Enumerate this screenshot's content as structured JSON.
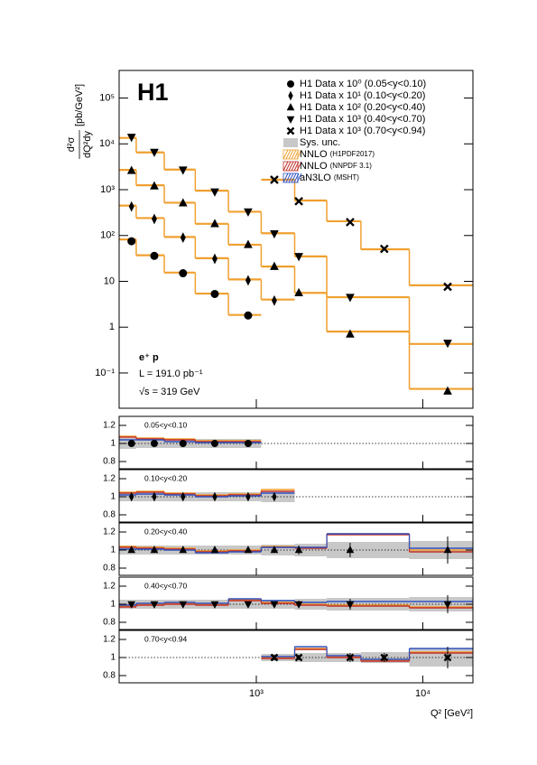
{
  "chart_data": {
    "type": "step",
    "title": "H1",
    "annotations": [
      "e⁺ p",
      "L = 191.0 pb⁻¹",
      "√s = 319 GeV"
    ],
    "xlabel": "Q² [GeV²]",
    "ylabel": {
      "numerator": "d²σ",
      "denominator": "dQ²dy",
      "unit": "[pb/GeV²]"
    },
    "xscale": "log",
    "yscale": "log",
    "xlim": [
      150,
      20000
    ],
    "xticks": [
      {
        "value": 1000,
        "label": "10³"
      },
      {
        "value": 10000,
        "label": "10⁴"
      }
    ],
    "ylim": [
      0.017,
      400000
    ],
    "yticks": [
      {
        "value": 0.1,
        "label": "10⁻¹"
      },
      1,
      10,
      {
        "value": 100,
        "label": "10²"
      },
      {
        "value": 1000,
        "label": "10³"
      },
      {
        "value": 10000,
        "label": "10⁴"
      },
      {
        "value": 100000,
        "label": "10⁵"
      }
    ],
    "legend": "upper right",
    "series": [
      {
        "name": "H1 Data x 10⁰ (0.05<y<0.10)",
        "marker": "circle",
        "color": "#000000",
        "x": [
          178,
          244,
          363,
          563,
          893
        ],
        "values": [
          75,
          36,
          15,
          5.3,
          1.8
        ],
        "bins": [
          150,
          190,
          280,
          430,
          680,
          1070
        ],
        "theory": [
          82,
          37,
          15.5,
          5.4,
          1.85
        ]
      },
      {
        "name": "H1 Data x 10¹ (0.10<y<0.20)",
        "marker": "diamond",
        "color": "#000000",
        "x": [
          178,
          244,
          363,
          563,
          893,
          1283
        ],
        "values": [
          430,
          230,
          90,
          31,
          10.5,
          3.8
        ],
        "bins": [
          150,
          190,
          280,
          430,
          680,
          1070,
          1700
        ],
        "theory": [
          450,
          240,
          93,
          32,
          11,
          4.0
        ]
      },
      {
        "name": "H1 Data x 10² (0.20<y<0.40)",
        "marker": "triangle-up",
        "color": "#000000",
        "x": [
          178,
          244,
          363,
          563,
          893,
          1283,
          1800,
          3660,
          14100
        ],
        "values": [
          2600,
          1200,
          510,
          180,
          63,
          21,
          5.6,
          0.7,
          0.04
        ],
        "bins": [
          150,
          190,
          280,
          430,
          680,
          1070,
          1700,
          2650,
          8300,
          20000
        ],
        "theory": [
          2700,
          1250,
          520,
          180,
          63,
          21,
          5.6,
          0.8,
          0.045
        ]
      },
      {
        "name": "H1 Data x 10³ (0.40<y<0.70)",
        "marker": "triangle-down",
        "color": "#000000",
        "x": [
          178,
          244,
          363,
          563,
          893,
          1283,
          1800,
          3660,
          14100
        ],
        "values": [
          14000,
          6600,
          2700,
          900,
          330,
          110,
          35,
          4.5,
          0.45
        ],
        "bins": [
          150,
          190,
          280,
          430,
          680,
          1070,
          1700,
          2650,
          8300,
          20000
        ],
        "theory": [
          13500,
          6500,
          2750,
          950,
          330,
          112,
          35,
          4.5,
          0.43
        ]
      },
      {
        "name": "H1 Data x 10³ (0.70<y<0.94)",
        "marker": "cross",
        "color": "#000000",
        "x": [
          1283,
          1800,
          3660,
          5870,
          14100
        ],
        "values": [
          1650,
          560,
          196,
          51,
          7.6
        ],
        "bins": [
          1070,
          1700,
          2650,
          4250,
          8300,
          20000
        ],
        "theory": [
          1650,
          580,
          205,
          50,
          8.2
        ]
      }
    ],
    "theory_legend": [
      {
        "name": "Sys. unc.",
        "color": "#c8c8c8"
      },
      {
        "name": "NNLO",
        "note": "(H1PDF2017)",
        "color": "#f0a030"
      },
      {
        "name": "NNLO",
        "note": "(NNPDF 3.1)",
        "color": "#c0302a"
      },
      {
        "name": "aN3LO",
        "note": "(MSHT)",
        "color": "#3050c0"
      }
    ],
    "ratios": [
      {
        "label": "0.05<y<0.10",
        "ylim": [
          0.72,
          1.3
        ],
        "yticks": [
          {
            "value": 0.8,
            "label": "0.8"
          },
          1,
          {
            "value": 1.2,
            "label": "1.2"
          }
        ],
        "x": [
          178,
          244,
          363,
          563,
          893
        ],
        "values": [
          1,
          1,
          1,
          1,
          1
        ],
        "errors": [
          0.02,
          0.02,
          0.02,
          0.02,
          0.03
        ],
        "bins": [
          150,
          190,
          280,
          430,
          680,
          1070
        ],
        "sys": [
          0.06,
          0.05,
          0.05,
          0.05,
          0.05
        ],
        "theory": [
          [
            1.08,
            1.06,
            1.05,
            1.03,
            1.03
          ],
          [
            1.07,
            1.05,
            1.04,
            1.02,
            1.02
          ],
          [
            1.04,
            1.04,
            1.02,
            1.01,
            1.01
          ]
        ]
      },
      {
        "label": "0.10<y<0.20",
        "ylim": [
          0.72,
          1.3
        ],
        "yticks": [
          {
            "value": 0.8,
            "label": "0.8"
          },
          1,
          {
            "value": 1.2,
            "label": "1.2"
          }
        ],
        "x": [
          178,
          244,
          363,
          563,
          893,
          1283
        ],
        "values": [
          1,
          1,
          1,
          1,
          1,
          1
        ],
        "errors": [
          0.02,
          0.02,
          0.02,
          0.02,
          0.03,
          0.03
        ],
        "bins": [
          150,
          190,
          280,
          430,
          680,
          1070,
          1700
        ],
        "sys": [
          0.05,
          0.05,
          0.05,
          0.05,
          0.05,
          0.06
        ],
        "theory": [
          [
            1.05,
            1.06,
            1.04,
            1.02,
            1.03,
            1.08
          ],
          [
            1.04,
            1.05,
            1.03,
            1.01,
            1.02,
            1.06
          ],
          [
            1.02,
            1.03,
            1.02,
            1.0,
            1.01,
            1.04
          ]
        ]
      },
      {
        "label": "0.20<y<0.40",
        "ylim": [
          0.72,
          1.3
        ],
        "yticks": [
          {
            "value": 0.8,
            "label": "0.8"
          },
          1,
          {
            "value": 1.2,
            "label": "1.2"
          }
        ],
        "x": [
          178,
          244,
          363,
          563,
          893,
          1283,
          1800,
          3660,
          14100
        ],
        "values": [
          1,
          1,
          1,
          1,
          1,
          1,
          1,
          1,
          1
        ],
        "errors": [
          0.02,
          0.02,
          0.02,
          0.02,
          0.03,
          0.03,
          0.05,
          0.08,
          0.15
        ],
        "bins": [
          150,
          190,
          280,
          430,
          680,
          1070,
          1700,
          2650,
          8300,
          20000
        ],
        "sys": [
          0.05,
          0.05,
          0.05,
          0.05,
          0.05,
          0.06,
          0.07,
          0.09,
          0.1
        ],
        "theory": [
          [
            1.04,
            1.03,
            1.02,
            0.99,
            1.0,
            1.04,
            1.03,
            1.18,
            1.0
          ],
          [
            1.03,
            1.02,
            1.01,
            0.98,
            0.99,
            1.03,
            1.02,
            1.17,
            0.98
          ],
          [
            1.01,
            1.01,
            1.0,
            0.97,
            0.98,
            1.03,
            1.03,
            1.18,
            1.02
          ]
        ]
      },
      {
        "label": "0.40<y<0.70",
        "ylim": [
          0.72,
          1.3
        ],
        "yticks": [
          {
            "value": 0.8,
            "label": "0.8"
          },
          1,
          {
            "value": 1.2,
            "label": "1.2"
          }
        ],
        "x": [
          178,
          244,
          363,
          563,
          893,
          1283,
          1800,
          3660,
          14100
        ],
        "values": [
          1,
          1,
          1,
          1,
          1,
          1,
          1,
          1,
          1
        ],
        "errors": [
          0.02,
          0.02,
          0.02,
          0.02,
          0.02,
          0.03,
          0.04,
          0.06,
          0.1
        ],
        "bins": [
          150,
          190,
          280,
          430,
          680,
          1070,
          1700,
          2650,
          8300,
          20000
        ],
        "sys": [
          0.05,
          0.05,
          0.05,
          0.05,
          0.05,
          0.05,
          0.06,
          0.07,
          0.08
        ],
        "theory": [
          [
            0.98,
            1.0,
            1.01,
            1.0,
            1.05,
            1.02,
            1.0,
            0.99,
            0.97
          ],
          [
            0.97,
            0.99,
            1.0,
            0.99,
            1.04,
            1.01,
            0.99,
            0.98,
            0.96
          ],
          [
            0.99,
            1.01,
            1.02,
            1.01,
            1.06,
            1.04,
            1.02,
            1.03,
            1.03
          ]
        ]
      },
      {
        "label": "0.70<y<0.94",
        "ylim": [
          0.72,
          1.3
        ],
        "yticks": [
          {
            "value": 0.8,
            "label": "0.8"
          },
          1,
          {
            "value": 1.2,
            "label": "1.2"
          }
        ],
        "x": [
          1283,
          1800,
          3660,
          5870,
          14100
        ],
        "values": [
          1,
          1,
          1,
          1,
          1
        ],
        "errors": [
          0.03,
          0.03,
          0.05,
          0.05,
          0.12
        ],
        "bins": [
          1070,
          1700,
          2650,
          4250,
          8300,
          20000
        ],
        "sys": [
          0.04,
          0.05,
          0.05,
          0.06,
          0.1
        ],
        "theory": [
          [
            1.0,
            1.1,
            1.01,
            0.97,
            1.06
          ],
          [
            0.99,
            1.09,
            1.0,
            0.96,
            1.05
          ],
          [
            1.01,
            1.12,
            1.02,
            0.98,
            1.1
          ]
        ]
      }
    ]
  }
}
